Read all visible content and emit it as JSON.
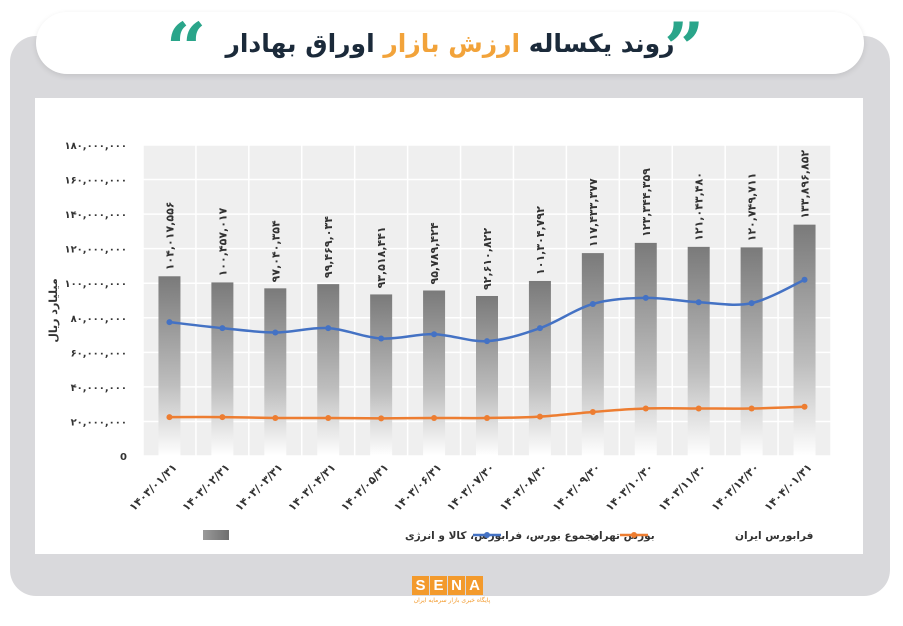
{
  "header": {
    "title_before": "روند یکساله",
    "title_highlight": "ارزش بازار",
    "title_after": "اوراق بهادار"
  },
  "chart_data": {
    "type": "bar",
    "categories": [
      "۱۴۰۳/۰۱/۳۱",
      "۱۴۰۳/۰۲/۳۱",
      "۱۴۰۳/۰۳/۳۱",
      "۱۴۰۳/۰۴/۳۱",
      "۱۴۰۳/۰۵/۳۱",
      "۱۴۰۳/۰۶/۳۱",
      "۱۴۰۳/۰۷/۳۰",
      "۱۴۰۳/۰۸/۳۰",
      "۱۴۰۳/۰۹/۳۰",
      "۱۴۰۳/۱۰/۳۰",
      "۱۴۰۳/۱۱/۳۰",
      "۱۴۰۳/۱۲/۳۰",
      "۱۴۰۴/۰۱/۳۱"
    ],
    "ylabel": "میلیارد ریال",
    "ylim": [
      0,
      180000000
    ],
    "yticks": [
      0,
      20000000,
      40000000,
      60000000,
      80000000,
      100000000,
      120000000,
      140000000,
      160000000,
      180000000
    ],
    "ytick_labels": [
      "0",
      "۲۰,۰۰۰,۰۰۰",
      "۴۰,۰۰۰,۰۰۰",
      "۶۰,۰۰۰,۰۰۰",
      "۸۰,۰۰۰,۰۰۰",
      "۱۰۰,۰۰۰,۰۰۰",
      "۱۲۰,۰۰۰,۰۰۰",
      "۱۴۰,۰۰۰,۰۰۰",
      "۱۶۰,۰۰۰,۰۰۰",
      "۱۸۰,۰۰۰,۰۰۰"
    ],
    "grid": true,
    "legend_position": "bottom",
    "series": [
      {
        "name": "مجموع بورس، فرابورس، کالا و انرژی",
        "kind": "bar",
        "values": [
          104017556,
          100457017,
          97040354,
          99469034,
          93518441,
          95789424,
          92610822,
          101304792,
          117433377,
          123344359,
          121043480,
          120749711,
          133896852
        ],
        "labels": [
          "۱۰۴,۰۱۷,۵۵۶",
          "۱۰۰,۴۵۷,۰۱۷",
          "۹۷,۰۴۰,۳۵۴",
          "۹۹,۴۶۹,۰۳۴",
          "۹۳,۵۱۸,۴۴۱",
          "۹۵,۷۸۹,۴۲۴",
          "۹۲,۶۱۰,۸۲۲",
          "۱۰۱,۳۰۴,۷۹۲",
          "۱۱۷,۴۳۳,۳۷۷",
          "۱۲۳,۳۴۴,۳۵۹",
          "۱۲۱,۰۴۳,۴۸۰",
          "۱۲۰,۷۴۹,۷۱۱",
          "۱۳۳,۸۹۶,۸۵۲"
        ],
        "color": "#8a8a8a"
      },
      {
        "name": "بورس تهران",
        "kind": "line",
        "values": [
          77500000,
          74000000,
          71500000,
          74000000,
          68000000,
          70500000,
          66500000,
          74000000,
          88000000,
          91500000,
          89000000,
          88500000,
          102000000
        ],
        "color": "#4472c4"
      },
      {
        "name": "فرابورس ایران",
        "kind": "line",
        "values": [
          22500000,
          22500000,
          22000000,
          22000000,
          21800000,
          22000000,
          22000000,
          22800000,
          25500000,
          27500000,
          27500000,
          27500000,
          28500000
        ],
        "color": "#ed7d31"
      }
    ]
  },
  "logo": {
    "letters": [
      "S",
      "E",
      "N",
      "A"
    ],
    "subtitle": "پایگاه خبری بازار سرمایه ایران"
  }
}
